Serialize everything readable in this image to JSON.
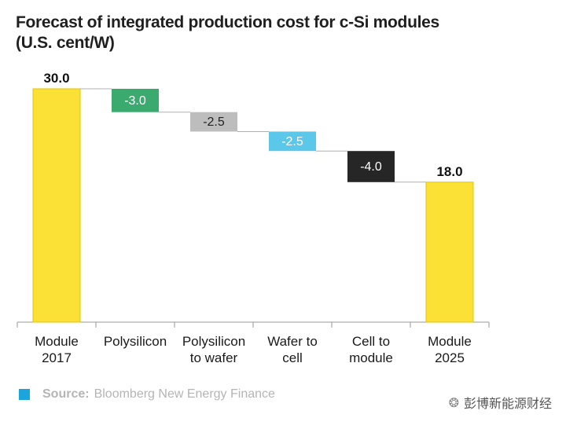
{
  "chart_data": {
    "type": "waterfall",
    "title": "Forecast of integrated production cost for c-Si modules (U.S. cent/W)",
    "categories": [
      "Module\n2017",
      "Polysilicon",
      "Polysilicon\nto wafer",
      "Wafer to\ncell",
      "Cell to\nmodule",
      "Module\n2025"
    ],
    "steps": [
      {
        "kind": "total",
        "value": 30.0,
        "label": "30.0",
        "color": "#fbe136"
      },
      {
        "kind": "delta",
        "value": -3.0,
        "label": "-3.0",
        "color": "#3aaa6e"
      },
      {
        "kind": "delta",
        "value": -2.5,
        "label": "-2.5",
        "color": "#bdbdbd"
      },
      {
        "kind": "delta",
        "value": -2.5,
        "label": "-2.5",
        "color": "#5bc8ea"
      },
      {
        "kind": "delta",
        "value": -4.0,
        "label": "-4.0",
        "color": "#262626"
      },
      {
        "kind": "total",
        "value": 18.0,
        "label": "18.0",
        "color": "#fbe136"
      }
    ],
    "ylim": [
      0,
      30
    ],
    "xlabel": "",
    "ylabel": ""
  },
  "source": {
    "label": "Source:",
    "text": "Bloomberg New Energy Finance",
    "marker_color": "#1aa6dc"
  },
  "watermark": {
    "text": "彭博新能源财经",
    "icon": "wechat-icon"
  }
}
